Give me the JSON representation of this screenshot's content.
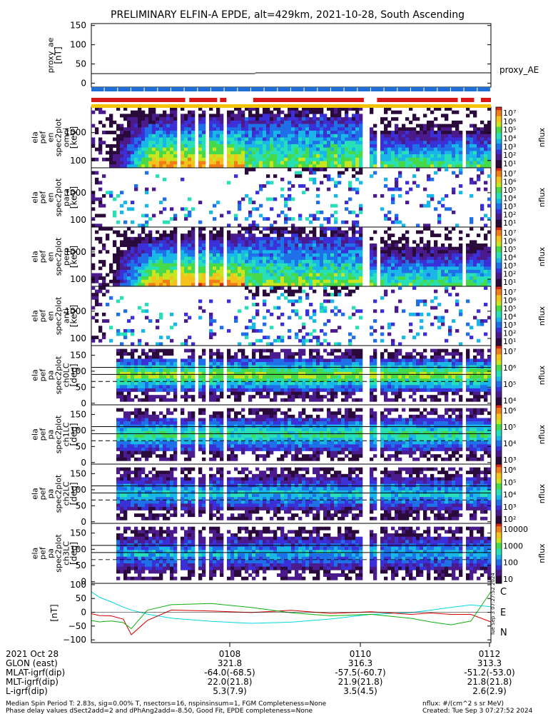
{
  "title": "PRELIMINARY ELFIN-A EPDE, alt=429km, 2021-10-28, South Ascending",
  "colors": {
    "axis": "#000000",
    "bar_blue": "#1f6fd6",
    "bar_red": "#d81818",
    "bar_yellow": "#f6c400",
    "trace_c": "#00d8e8",
    "trace_e": "#d80000",
    "trace_n": "#10b010"
  },
  "colormap": [
    "#ffffff",
    "#2a0a3a",
    "#4b1a8c",
    "#3b2fd8",
    "#1f6fe8",
    "#19b6e8",
    "#27e0b8",
    "#46d94a",
    "#c7e61f",
    "#f4c21a",
    "#f07d17",
    "#d8281a"
  ],
  "panels": [
    {
      "id": "proxy_ae",
      "ylabel_lines": [
        "proxy_ae",
        "[nT]"
      ],
      "yticks": [
        "150",
        "100",
        "50",
        "0"
      ],
      "right_label": "proxy_AE",
      "chart_data": {
        "type": "line",
        "ylim": [
          -10,
          155
        ],
        "segments": [
          {
            "x": [
              0,
              0.41
            ],
            "y": [
              25,
              25
            ]
          },
          {
            "x": [
              0.41,
              1.0
            ],
            "y": [
              27,
              27
            ]
          }
        ]
      }
    },
    {
      "id": "en_omni",
      "ylabel_lines": [
        "ela",
        "pef",
        "en",
        "spec2plot",
        "omni",
        "[keV]"
      ],
      "yticks": [
        "1000",
        "100"
      ],
      "cbar_label": "nflux",
      "cbar_ticks": [
        "10⁷",
        "10⁶",
        "10⁵",
        "10⁴",
        "10³",
        "10²",
        "10¹"
      ],
      "kind": "energy",
      "strength": 1.0
    },
    {
      "id": "en_para",
      "ylabel_lines": [
        "ela",
        "pef",
        "en",
        "spec2plot",
        "para",
        "[keV]"
      ],
      "yticks": [
        "1000",
        "100"
      ],
      "cbar_label": "nflux",
      "cbar_ticks": [
        "10⁷",
        "10⁶",
        "10⁵",
        "10⁴",
        "10³",
        "10²",
        "10¹"
      ],
      "kind": "energy",
      "strength": 0.35
    },
    {
      "id": "en_perp",
      "ylabel_lines": [
        "ela",
        "pef",
        "en",
        "spec2plot",
        "perp",
        "[keV]"
      ],
      "yticks": [
        "1000",
        "100"
      ],
      "cbar_label": "nflux",
      "cbar_ticks": [
        "10⁷",
        "10⁶",
        "10⁵",
        "10⁴",
        "10³",
        "10²",
        "10¹"
      ],
      "kind": "energy",
      "strength": 1.0
    },
    {
      "id": "en_anti",
      "ylabel_lines": [
        "ela",
        "pef",
        "en",
        "spec2plot",
        "anti",
        "[keV]"
      ],
      "yticks": [
        "1000",
        "100"
      ],
      "cbar_label": "nflux",
      "cbar_ticks": [
        "10⁷",
        "10⁶",
        "10⁵",
        "10⁴",
        "10³",
        "10²",
        "10¹"
      ],
      "kind": "energy",
      "strength": 0.4
    },
    {
      "id": "pa_ch0",
      "ylabel_lines": [
        "ela",
        "pef",
        "pa",
        "spec2plot",
        "ch0LC",
        "[deg]"
      ],
      "yticks": [
        "150",
        "100",
        "50",
        "0"
      ],
      "cbar_label": "nflux",
      "cbar_ticks": [
        "10⁷",
        "10⁶",
        "10⁵",
        "10⁴"
      ],
      "kind": "pitch",
      "strength": 1.0
    },
    {
      "id": "pa_ch1",
      "ylabel_lines": [
        "ela",
        "pef",
        "pa",
        "spec2plot",
        "ch1LC",
        "[deg]"
      ],
      "yticks": [
        "150",
        "100",
        "50",
        "0"
      ],
      "cbar_label": "nflux",
      "cbar_ticks": [
        "10⁶",
        "10⁵",
        "10⁴",
        "10³"
      ],
      "kind": "pitch",
      "strength": 0.85
    },
    {
      "id": "pa_ch2",
      "ylabel_lines": [
        "ela",
        "pef",
        "pa",
        "spec2plot",
        "ch2LC",
        "[deg]"
      ],
      "yticks": [
        "150",
        "100",
        "50",
        "0"
      ],
      "cbar_label": "nflux",
      "cbar_ticks": [
        "10⁶",
        "10⁵",
        "10⁴",
        "10³",
        "10²"
      ],
      "kind": "pitch",
      "strength": 0.7
    },
    {
      "id": "pa_ch3",
      "ylabel_lines": [
        "ela",
        "pef",
        "pa",
        "spec2plot",
        "ch3LC",
        "[deg]"
      ],
      "yticks": [
        "150",
        "100",
        "50",
        "0"
      ],
      "cbar_label": "nflux",
      "cbar_ticks": [
        "10000",
        "1000",
        "100",
        "10"
      ],
      "kind": "pitch",
      "strength": 0.65
    },
    {
      "id": "mag",
      "ylabel_lines": [
        "[nT]"
      ],
      "yticks": [
        "100",
        "50",
        "0",
        "−50",
        "−100"
      ],
      "legend": [
        "C",
        "E",
        "N"
      ],
      "chart_data": {
        "type": "line",
        "ylim": [
          -110,
          105
        ],
        "x": [
          0,
          0.02,
          0.05,
          0.08,
          0.1,
          0.14,
          0.2,
          0.3,
          0.4,
          0.5,
          0.6,
          0.7,
          0.8,
          0.85,
          0.9,
          0.95,
          1.0
        ],
        "series": [
          {
            "name": "C",
            "values": [
              75,
              55,
              35,
              20,
              10,
              -5,
              -20,
              -35,
              -40,
              -35,
              -25,
              -10,
              0,
              10,
              20,
              25,
              20
            ]
          },
          {
            "name": "E",
            "values": [
              -5,
              -10,
              -15,
              -25,
              -80,
              -30,
              10,
              5,
              0,
              10,
              -5,
              5,
              -5,
              0,
              -10,
              -5,
              -35
            ]
          },
          {
            "name": "N",
            "values": [
              -30,
              -35,
              -30,
              -40,
              -60,
              5,
              25,
              30,
              20,
              0,
              -15,
              -5,
              -20,
              -35,
              -45,
              -30,
              75
            ]
          }
        ]
      }
    }
  ],
  "xaxis": {
    "rows": [
      {
        "label": "2021 Oct 28",
        "values": [
          "0108",
          "0110",
          "0112"
        ]
      },
      {
        "label": "GLON (east)",
        "values": [
          "321.8",
          "316.3",
          "313.3"
        ]
      },
      {
        "label": "MLAT-igrf(dip)",
        "values": [
          "-64.0(-68.5)",
          "-57.5(-60.7)",
          "-51.2(-53.0)"
        ]
      },
      {
        "label": "MLT-igrf(dip)",
        "values": [
          "22.0(21.8)",
          "21.9(21.8)",
          "21.8(21.8)"
        ]
      },
      {
        "label": "L-igrf(dip)",
        "values": [
          "5.3(7.9)",
          "3.5(4.5)",
          "2.6(2.9)"
        ]
      }
    ]
  },
  "footer": {
    "line1_left": "Median Spin Period T: 2.83s, sig=0.00% T, nsectors=16, nspinsinsum=1, FGM Completeness=None",
    "line2_left": "Phase delay values dSect2add=2 and dPhAng2add=-8.50, Good Fit, EPDE completeness=None",
    "line1_right": "nflux: #/(cm^2 s sr MeV)",
    "line2_right": "Created: Tue Sep  3 07:27:52 2024",
    "vertical_stamp": "Tue Sep  3 07:27:52 2024"
  }
}
